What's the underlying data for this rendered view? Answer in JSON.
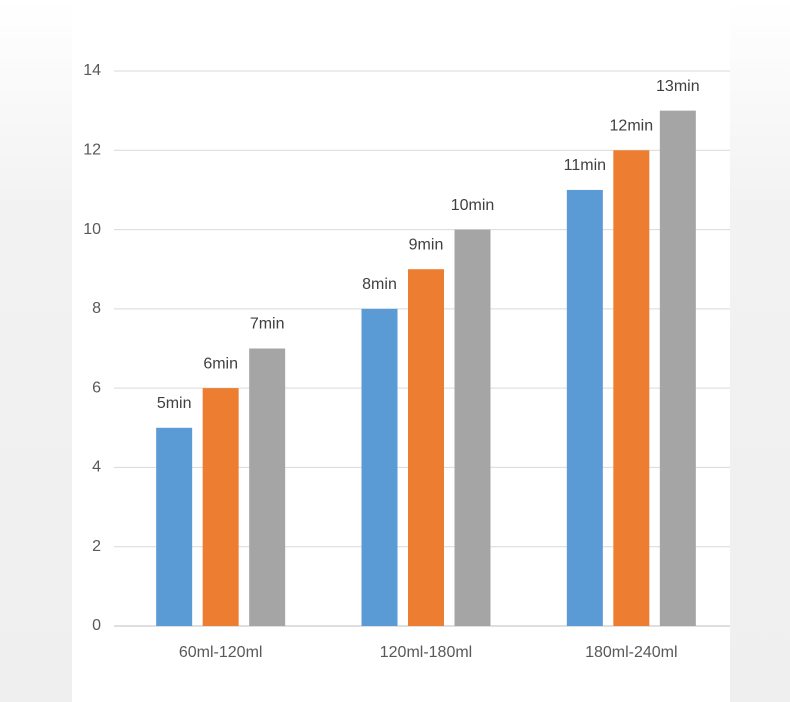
{
  "chart_data": {
    "type": "bar",
    "categories": [
      "60ml-120ml",
      "120ml-180ml",
      "180ml-240ml"
    ],
    "series": [
      {
        "color": "#5b9bd5",
        "values": [
          5,
          8,
          11
        ],
        "value_labels": [
          "5min",
          "8min",
          "11min"
        ]
      },
      {
        "color": "#ed7d31",
        "values": [
          6,
          9,
          12
        ],
        "value_labels": [
          "6min",
          "9min",
          "12min"
        ]
      },
      {
        "color": "#a5a5a5",
        "values": [
          7,
          10,
          13
        ],
        "value_labels": [
          "7min",
          "10min",
          "13min"
        ]
      }
    ],
    "ylim": [
      0,
      14
    ],
    "yticks": [
      0,
      2,
      4,
      6,
      8,
      10,
      12,
      14
    ],
    "grid": true
  }
}
